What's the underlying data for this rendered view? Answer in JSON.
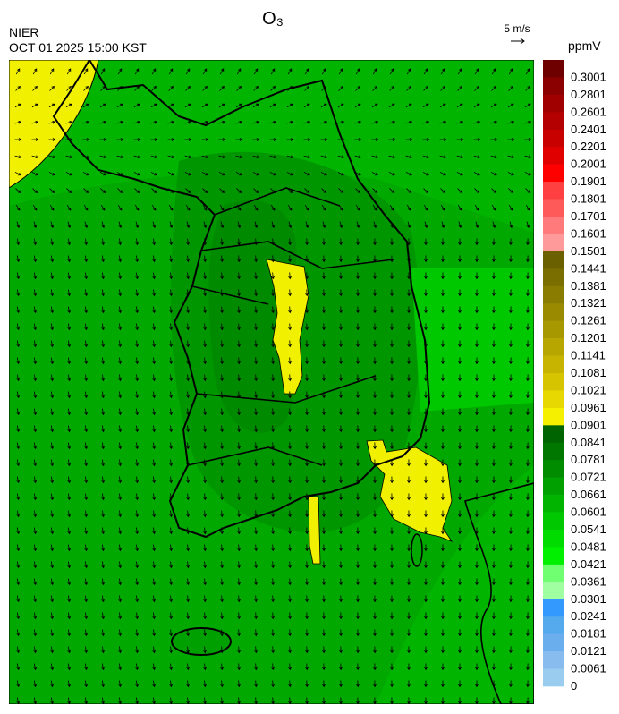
{
  "header": {
    "title": "O₃",
    "agency": "NIER",
    "timestamp": "OCT 01 2025 15:00 KST",
    "wind_scale": "5 m/s"
  },
  "legend": {
    "unit": "ppmV",
    "items": [
      {
        "label": "0.3001",
        "color": "#6e0000"
      },
      {
        "label": "0.2801",
        "color": "#8b0000"
      },
      {
        "label": "0.2601",
        "color": "#a00000"
      },
      {
        "label": "0.2401",
        "color": "#b40000"
      },
      {
        "label": "0.2201",
        "color": "#c80000"
      },
      {
        "label": "0.2001",
        "color": "#e00000"
      },
      {
        "label": "0.1901",
        "color": "#ff0000"
      },
      {
        "label": "0.1801",
        "color": "#ff4040"
      },
      {
        "label": "0.1701",
        "color": "#ff5a5a"
      },
      {
        "label": "0.1601",
        "color": "#ff7a7a"
      },
      {
        "label": "0.1501",
        "color": "#ff9a9a"
      },
      {
        "label": "0.1441",
        "color": "#6b6000"
      },
      {
        "label": "0.1381",
        "color": "#7a6e00"
      },
      {
        "label": "0.1321",
        "color": "#8a7c00"
      },
      {
        "label": "0.1261",
        "color": "#998a00"
      },
      {
        "label": "0.1201",
        "color": "#a89800"
      },
      {
        "label": "0.1141",
        "color": "#b8a600"
      },
      {
        "label": "0.1081",
        "color": "#c7b400"
      },
      {
        "label": "0.1021",
        "color": "#d6c400"
      },
      {
        "label": "0.0961",
        "color": "#e6d800"
      },
      {
        "label": "0.0901",
        "color": "#f5f000"
      },
      {
        "label": "0.0841",
        "color": "#006400"
      },
      {
        "label": "0.0781",
        "color": "#007800"
      },
      {
        "label": "0.0721",
        "color": "#008c00"
      },
      {
        "label": "0.0661",
        "color": "#00a000"
      },
      {
        "label": "0.0601",
        "color": "#00b400"
      },
      {
        "label": "0.0541",
        "color": "#00c800"
      },
      {
        "label": "0.0481",
        "color": "#00dc00"
      },
      {
        "label": "0.0421",
        "color": "#00f000"
      },
      {
        "label": "0.0361",
        "color": "#70ff70"
      },
      {
        "label": "0.0301",
        "color": "#a0ffa0"
      },
      {
        "label": "0.0241",
        "color": "#3399ff"
      },
      {
        "label": "0.0181",
        "color": "#55aaee"
      },
      {
        "label": "0.0121",
        "color": "#6aaeee"
      },
      {
        "label": "0.0061",
        "color": "#88bbee"
      },
      {
        "label": "0",
        "color": "#99ccee"
      }
    ]
  }
}
